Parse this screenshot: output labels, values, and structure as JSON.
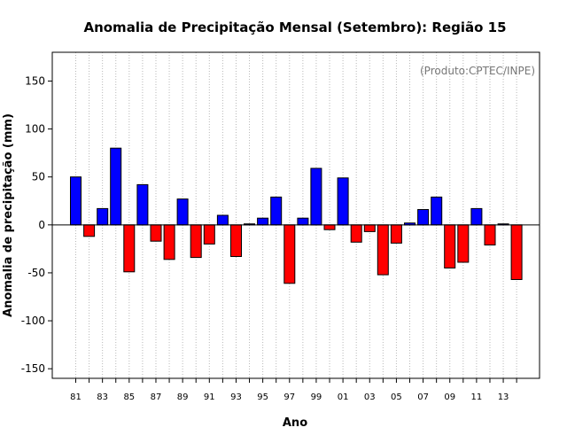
{
  "chart_data": {
    "type": "bar",
    "title": "Anomalia de Precipitação Mensal (Setembro): Região 15",
    "xlabel": "Ano",
    "ylabel": "Anomalia de precipitação (mm)",
    "credit": "(Produto:CPTEC/INPE)",
    "ylim": [
      -160,
      180
    ],
    "yticks": [
      -150,
      -100,
      -50,
      0,
      50,
      100,
      150
    ],
    "xtick_labels": [
      "81",
      "83",
      "85",
      "87",
      "89",
      "91",
      "93",
      "95",
      "97",
      "99",
      "01",
      "03",
      "05",
      "07",
      "09",
      "11",
      "13"
    ],
    "categories": [
      "81",
      "82",
      "83",
      "84",
      "85",
      "86",
      "87",
      "88",
      "89",
      "90",
      "91",
      "92",
      "93",
      "94",
      "95",
      "96",
      "97",
      "98",
      "99",
      "00",
      "01",
      "02",
      "03",
      "04",
      "05",
      "06",
      "07",
      "08",
      "09",
      "10",
      "11",
      "12",
      "13",
      "14"
    ],
    "values": [
      50,
      -12,
      17,
      80,
      -49,
      42,
      -17,
      -36,
      27,
      -34,
      -20,
      10,
      -33,
      1,
      7,
      29,
      -61,
      7,
      59,
      -5,
      49,
      -18,
      -7,
      -52,
      -19,
      2,
      16,
      29,
      -45,
      -39,
      17,
      -21,
      1,
      -57
    ],
    "positive_color": "#0000ff",
    "negative_color": "#ff0000",
    "grid": "vertical dotted"
  }
}
